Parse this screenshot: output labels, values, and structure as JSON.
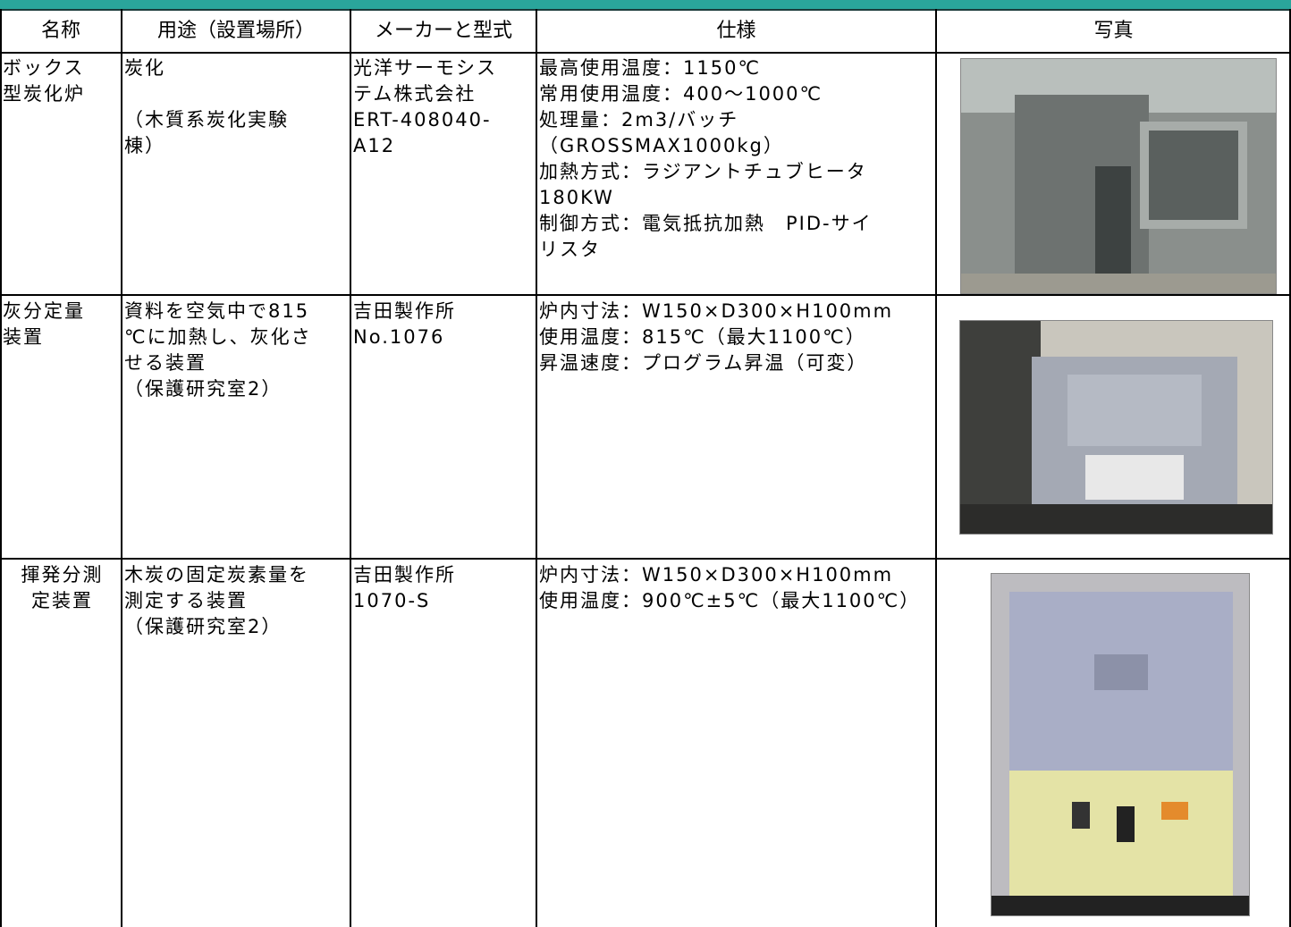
{
  "table": {
    "headers": [
      "名称",
      "用途（設置場所）",
      "メーカーと型式",
      "仕様",
      "写真"
    ],
    "rows": [
      [
        [
          "ボックス",
          "型炭化炉"
        ],
        [
          "炭化",
          "（木質系炭化実験",
          "棟）"
        ],
        [
          "光洋サーモシス",
          "テム株式会社",
          "ERT-408040-",
          "A12"
        ],
        [
          "最高使用温度：1150℃",
          "常用使用温度：400～1000℃",
          "処理量：2m3/バッチ",
          "（GROSSMAX1000kg）",
          "加熱方式：ラジアントチュブヒータ",
          "180KW",
          "制御方式：電気抵抗加熱　PID-サイ",
          "リスタ"
        ]
      ],
      [
        [
          "灰分定量",
          "装置"
        ],
        [
          "資料を空気中で815",
          "℃に加熱し、灰化さ",
          "せる装置",
          "（保護研究室2）"
        ],
        [
          "吉田製作所",
          "No.1076"
        ],
        [
          "炉内寸法：W150×D300×H100mm",
          "使用温度：815℃（最大1100℃）",
          "昇温速度：プログラム昇温（可変）"
        ]
      ],
      [
        [
          "揮発分測",
          "定装置"
        ],
        [
          "木炭の固定炭素量を",
          "測定する装置",
          "（保護研究室2）"
        ],
        [
          "吉田製作所",
          "1070-S"
        ],
        [
          "炉内寸法：W150×D300×H100mm",
          "使用温度：900℃±5℃（最大1100℃）"
        ]
      ]
    ]
  }
}
